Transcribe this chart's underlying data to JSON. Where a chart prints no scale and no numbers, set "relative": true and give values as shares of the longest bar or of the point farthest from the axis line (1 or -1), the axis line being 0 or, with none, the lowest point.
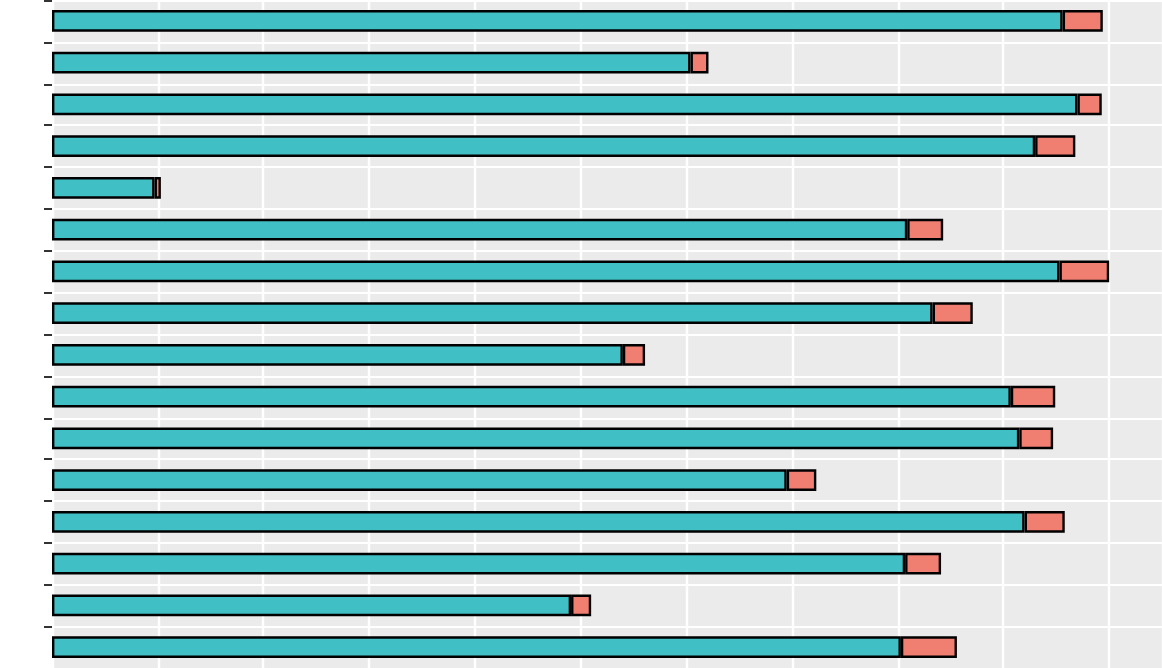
{
  "chart_data": {
    "type": "bar",
    "orientation": "horizontal",
    "stacked": true,
    "relative": true,
    "grid": true,
    "categories": [
      null,
      null,
      null,
      null,
      null,
      null,
      null,
      null,
      null,
      null,
      null,
      null,
      null,
      null,
      null,
      null
    ],
    "series": [
      {
        "color": "#40bfc4",
        "values": [
          0.956,
          0.604,
          0.97,
          0.93,
          0.097,
          0.809,
          0.953,
          0.833,
          0.54,
          0.907,
          0.915,
          0.695,
          0.92,
          0.807,
          0.491,
          0.803
        ]
      },
      {
        "color": "#f07f72",
        "values": [
          0.038,
          0.017,
          0.023,
          0.038,
          0.006,
          0.034,
          0.047,
          0.038,
          0.021,
          0.042,
          0.032,
          0.028,
          0.038,
          0.034,
          0.019,
          0.053
        ]
      }
    ]
  }
}
